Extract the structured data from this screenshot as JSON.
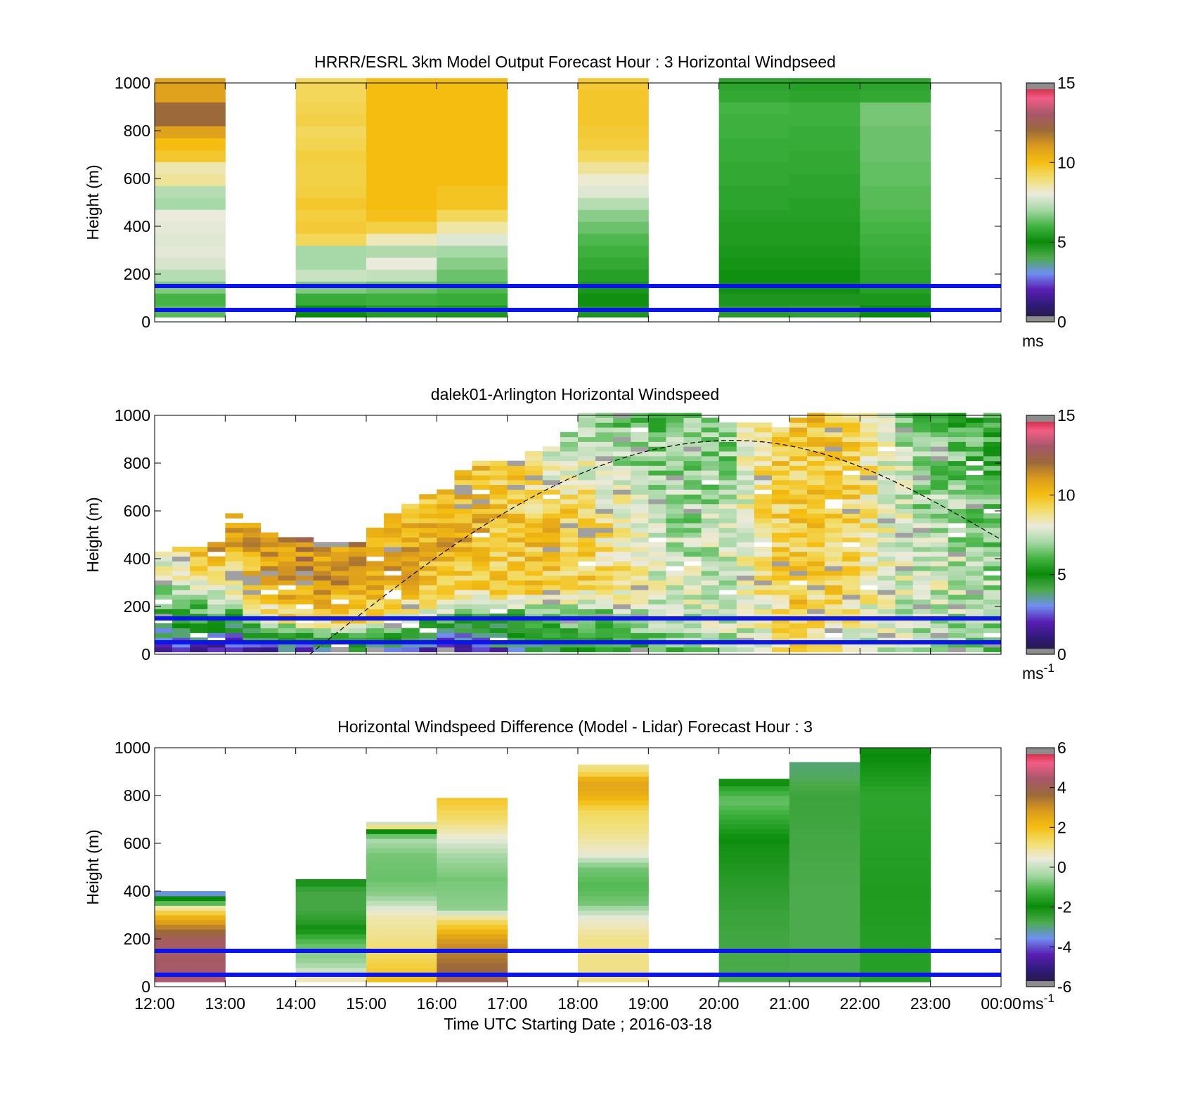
{
  "chart_data": [
    {
      "id": "model",
      "type": "heatmap",
      "title": "HRRR/ESRL 3km Model Output   Forecast Hour : 3 Horizontal Windpseed",
      "ylabel": "Height (m)",
      "xlabel": "",
      "xlim": [
        12,
        24
      ],
      "ylim": [
        0,
        1000
      ],
      "y_ticks": [
        0,
        200,
        400,
        600,
        800,
        1000
      ],
      "x_ticks_labeled": false,
      "reference_lines_m": [
        50,
        150
      ],
      "colorbar": {
        "min": 0,
        "max": 15,
        "ticks": [
          0,
          5,
          10,
          15
        ],
        "unit": "ms",
        "unit_sup": ""
      },
      "bin_height_m": 50,
      "data_bottom_m": 20,
      "columns": [
        {
          "start_hour": 12,
          "end_hour": 13,
          "speeds": [
            6.2,
            6.0,
            6.6,
            7.2,
            7.7,
            7.9,
            7.8,
            7.9,
            8.0,
            7.0,
            7.2,
            8.6,
            8.4,
            9.7,
            10.0,
            10.8,
            12.0,
            12.0,
            10.8,
            10.8
          ]
        },
        {
          "start_hour": 14,
          "end_hour": 15,
          "speeds": [
            5.0,
            5.8,
            6.6,
            7.5,
            7.0,
            7.0,
            9.2,
            9.6,
            9.5,
            9.7,
            9.5,
            9.4,
            9.4,
            9.5,
            9.3,
            9.2,
            9.4,
            9.3,
            9.2,
            9.2
          ]
        },
        {
          "start_hour": 15,
          "end_hour": 16,
          "speeds": [
            5.4,
            5.9,
            6.4,
            7.4,
            8.0,
            7.1,
            8.3,
            9.4,
            9.9,
            10.0,
            10.0,
            10.0,
            10.0,
            10.0,
            10.0,
            10.0,
            10.0,
            10.0,
            10.0,
            10.0
          ]
        },
        {
          "start_hour": 16,
          "end_hour": 17,
          "speeds": [
            5.3,
            5.8,
            6.1,
            6.4,
            6.7,
            7.0,
            7.8,
            8.5,
            9.2,
            9.8,
            9.8,
            10.0,
            10.0,
            10.0,
            10.0,
            10.0,
            10.0,
            10.0,
            10.0,
            10.0
          ]
        },
        {
          "start_hour": 18,
          "end_hour": 19,
          "speeds": [
            4.7,
            4.9,
            5.3,
            5.5,
            5.7,
            5.9,
            6.1,
            6.4,
            6.7,
            7.2,
            7.8,
            8.1,
            8.6,
            9.2,
            9.5,
            9.6,
            9.7,
            9.7,
            9.7,
            9.6
          ]
        },
        {
          "start_hour": 20,
          "end_hour": 21,
          "speeds": [
            4.5,
            4.7,
            4.9,
            5.1,
            5.2,
            5.3,
            5.4,
            5.4,
            5.5,
            5.6,
            5.6,
            5.7,
            5.7,
            5.8,
            5.8,
            5.9,
            5.9,
            6.0,
            5.7,
            5.6
          ]
        },
        {
          "start_hour": 21,
          "end_hour": 22,
          "speeds": [
            4.4,
            4.7,
            4.9,
            5.1,
            5.2,
            5.3,
            5.4,
            5.4,
            5.5,
            5.5,
            5.6,
            5.6,
            5.7,
            5.7,
            5.8,
            5.8,
            5.9,
            5.9,
            5.6,
            5.5
          ]
        },
        {
          "start_hour": 22,
          "end_hour": 23,
          "speeds": [
            5.0,
            5.3,
            5.5,
            5.6,
            5.7,
            5.8,
            5.9,
            6.0,
            6.1,
            6.2,
            6.2,
            6.3,
            6.3,
            6.4,
            6.4,
            6.4,
            6.5,
            6.5,
            5.7,
            5.6
          ]
        }
      ]
    },
    {
      "id": "lidar",
      "type": "heatmap",
      "title": "dalek01-Arlington  Horizontal Windspeed",
      "ylabel": "Height (m)",
      "xlabel": "",
      "xlim": [
        12,
        24
      ],
      "ylim": [
        0,
        1000
      ],
      "y_ticks": [
        0,
        200,
        400,
        600,
        800,
        1000
      ],
      "x_ticks_labeled": false,
      "reference_lines_m": [
        50,
        150
      ],
      "colorbar": {
        "min": 0,
        "max": 15,
        "ticks": [
          0,
          5,
          10,
          15
        ],
        "unit": "ms",
        "unit_sup": "-1"
      },
      "boundary_layer_curve": {
        "hours": [
          14.2,
          20.2,
          24
        ],
        "heights_m": [
          0,
          895,
          480
        ],
        "style": "dashed"
      },
      "profile_start_hour": 12,
      "profile_step_hour": 0.25,
      "bin_height_m": 20,
      "profile_heights_m": [
        [
          430,
          440,
          420,
          590,
          500,
          490,
          470,
          460,
          460
        ],
        [
          530,
          600,
          660,
          690,
          810,
          800,
          820,
          850,
          920
        ],
        [
          1000,
          1000,
          1000,
          1000,
          1000,
          980,
          960,
          960,
          950
        ],
        [
          990,
          1000,
          1000,
          1000,
          1000,
          1000,
          1000,
          1000,
          1000
        ]
      ],
      "profile_speeds": [
        [
          [
            1.0,
            1.5,
            2.5,
            3.5,
            5.0,
            7.0,
            9.0
          ],
          [
            1.5,
            2.0,
            3.0,
            4.0,
            5.5,
            7.5,
            9.0
          ],
          [
            1.0,
            1.5,
            2.5,
            4.0,
            5.5,
            8.0,
            11.0
          ],
          [
            1.5,
            2.0,
            3.0,
            4.5,
            6.5,
            9.5,
            11.5
          ],
          [
            2.0,
            2.5,
            3.5,
            5.0,
            8.0,
            10.5,
            11.0
          ],
          [
            2.0,
            3.0,
            4.5,
            6.0,
            9.0,
            11.0,
            11.0
          ],
          [
            2.0,
            3.0,
            4.5,
            6.5,
            9.0,
            11.0,
            11.5
          ],
          [
            2.5,
            3.5,
            5.0,
            7.0,
            9.5,
            11.0,
            11.0
          ],
          [
            3.0,
            4.0,
            5.0,
            7.0,
            9.5,
            11.0,
            11.5
          ]
        ],
        [
          [
            3.5,
            4.0,
            5.0,
            7.0,
            9.5,
            11.0,
            10.5
          ],
          [
            2.5,
            3.5,
            4.5,
            6.5,
            9.0,
            11.0,
            10.0
          ],
          [
            2.0,
            3.0,
            4.0,
            6.0,
            9.0,
            10.5,
            10.0
          ],
          [
            1.5,
            2.5,
            3.5,
            5.5,
            9.0,
            10.5,
            10.0
          ],
          [
            1.5,
            2.0,
            3.0,
            5.0,
            9.0,
            10.5,
            10.0
          ],
          [
            2.5,
            3.0,
            4.0,
            5.5,
            9.0,
            10.0,
            9.5
          ],
          [
            3.5,
            4.0,
            5.0,
            6.0,
            9.5,
            10.0,
            9.0
          ],
          [
            4.0,
            4.5,
            5.0,
            6.5,
            9.5,
            10.0,
            7.5
          ],
          [
            4.5,
            5.0,
            5.5,
            7.0,
            9.5,
            9.5,
            7.0
          ]
        ],
        [
          [
            5.0,
            5.5,
            6.0,
            7.0,
            9.5,
            9.0,
            6.5
          ],
          [
            5.0,
            5.5,
            6.0,
            7.0,
            9.0,
            8.5,
            6.5
          ],
          [
            5.5,
            6.0,
            6.5,
            7.5,
            8.5,
            7.5,
            6.5
          ],
          [
            6.0,
            6.5,
            7.0,
            7.5,
            8.0,
            7.0,
            6.5
          ],
          [
            6.5,
            7.0,
            7.0,
            7.5,
            7.5,
            7.0,
            6.5
          ],
          [
            7.0,
            7.0,
            7.5,
            7.5,
            7.5,
            7.0,
            6.5
          ],
          [
            7.5,
            7.5,
            7.5,
            7.5,
            7.5,
            7.5,
            6.5
          ],
          [
            8.0,
            8.0,
            8.0,
            8.0,
            8.5,
            8.5,
            9.0
          ],
          [
            8.5,
            9.0,
            9.0,
            9.0,
            9.5,
            9.5,
            9.5
          ]
        ],
        [
          [
            9.0,
            9.0,
            9.5,
            9.5,
            9.5,
            9.5,
            9.5
          ],
          [
            8.5,
            8.5,
            9.0,
            9.0,
            9.5,
            9.5,
            10.0
          ],
          [
            8.0,
            8.5,
            8.5,
            9.0,
            9.0,
            9.5,
            9.5
          ],
          [
            7.5,
            7.5,
            8.0,
            8.0,
            8.5,
            8.5,
            9.0
          ],
          [
            7.0,
            7.5,
            7.5,
            7.5,
            8.0,
            8.0,
            7.0
          ],
          [
            7.0,
            7.0,
            7.5,
            7.5,
            7.5,
            7.0,
            6.5
          ],
          [
            6.5,
            7.0,
            7.0,
            7.5,
            7.5,
            7.0,
            6.0
          ],
          [
            6.0,
            6.5,
            7.0,
            7.0,
            7.5,
            6.5,
            6.0
          ],
          [
            5.5,
            6.0,
            6.5,
            7.0,
            7.0,
            6.5,
            5.5
          ]
        ]
      ]
    },
    {
      "id": "difference",
      "type": "heatmap",
      "title": "Horizontal Windspeed Difference (Model - Lidar) Forecast Hour : 3",
      "ylabel": "Height (m)",
      "xlabel": "Time UTC  Starting Date ; 2016-03-18",
      "xlim": [
        12,
        24
      ],
      "ylim": [
        0,
        1000
      ],
      "y_ticks": [
        0,
        200,
        400,
        600,
        800,
        1000
      ],
      "x_ticks_labeled": true,
      "x_tick_labels": [
        "12:00",
        "13:00",
        "14:00",
        "15:00",
        "16:00",
        "17:00",
        "18:00",
        "19:00",
        "20:00",
        "21:00",
        "22:00",
        "23:00",
        "00:00"
      ],
      "reference_lines_m": [
        50,
        150
      ],
      "colorbar": {
        "min": -6,
        "max": 6,
        "ticks": [
          -6,
          -4,
          -2,
          0,
          2,
          4,
          6
        ],
        "unit": "ms",
        "unit_sup": "-1"
      },
      "bin_height_m": 20,
      "data_bottom_m": 20,
      "columns": [
        {
          "start_hour": 12,
          "end_hour": 13,
          "top_m": 400,
          "knots_m": [
            20,
            100,
            200,
            260,
            300,
            330,
            360,
            380,
            400
          ],
          "knot_values": [
            4.5,
            4.3,
            4.2,
            3.0,
            2.0,
            0.8,
            -2.0,
            -2.0,
            -5.0
          ]
        },
        {
          "start_hour": 14,
          "end_hour": 15,
          "top_m": 450,
          "knots_m": [
            20,
            60,
            100,
            150,
            200,
            260,
            320,
            400,
            430,
            450
          ],
          "knot_values": [
            0.8,
            0.2,
            -0.5,
            -0.7,
            -1.2,
            -2.3,
            -2.7,
            -2.7,
            -2.2,
            -2.2
          ]
        },
        {
          "start_hour": 15,
          "end_hour": 16,
          "top_m": 690,
          "knots_m": [
            20,
            100,
            200,
            300,
            380,
            450,
            550,
            620,
            650,
            670,
            690
          ],
          "knot_values": [
            2.0,
            1.5,
            1.0,
            0.7,
            -0.6,
            -0.9,
            -0.8,
            -0.3,
            -2.0,
            1.0,
            0.0
          ]
        },
        {
          "start_hour": 16,
          "end_hour": 17,
          "top_m": 790,
          "knots_m": [
            20,
            100,
            200,
            280,
            330,
            450,
            550,
            650,
            700,
            790
          ],
          "knot_values": [
            4.0,
            3.5,
            2.8,
            1.2,
            -0.6,
            -0.8,
            -0.4,
            0.7,
            1.2,
            1.8
          ]
        },
        {
          "start_hour": 18,
          "end_hour": 19,
          "top_m": 930,
          "knots_m": [
            20,
            200,
            280,
            350,
            420,
            500,
            560,
            650,
            730,
            800,
            860,
            900,
            930
          ],
          "knot_values": [
            1.0,
            1.0,
            0.5,
            -0.8,
            -1.1,
            -0.8,
            0.5,
            1.0,
            1.3,
            2.3,
            2.6,
            1.2,
            1.0
          ]
        },
        {
          "start_hour": 20,
          "end_hour": 21,
          "top_m": 870,
          "knots_m": [
            20,
            300,
            600,
            780,
            830,
            850,
            870
          ],
          "knot_values": [
            -2.8,
            -2.6,
            -2.1,
            -0.9,
            -1.5,
            -2.1,
            -2.1
          ]
        },
        {
          "start_hour": 21,
          "end_hour": 22,
          "top_m": 940,
          "knots_m": [
            20,
            400,
            800,
            880,
            940
          ],
          "knot_values": [
            -2.8,
            -2.8,
            -2.6,
            -2.9,
            -3.0
          ]
        },
        {
          "start_hour": 22,
          "end_hour": 23,
          "top_m": 1000,
          "knots_m": [
            20,
            400,
            800,
            1000
          ],
          "knot_values": [
            -1.6,
            -1.7,
            -1.5,
            -2.1
          ]
        }
      ]
    }
  ],
  "colormap_stops": [
    "#231a3a",
    "#2f1a78",
    "#5a1fb4",
    "#6f8ff0",
    "#4cab4c",
    "#0a8c0a",
    "#44b444",
    "#a7d8a7",
    "#ebebdc",
    "#f2de6c",
    "#f4bd10",
    "#db9b1c",
    "#9c6a3a",
    "#a6586a",
    "#f35c85",
    "#c00f1c"
  ],
  "reference_line_color": "#0a14f0"
}
